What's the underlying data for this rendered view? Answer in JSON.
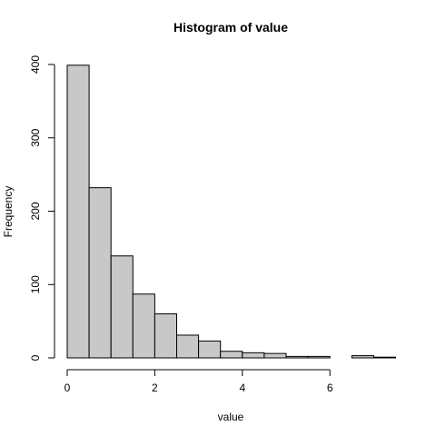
{
  "chart_data": {
    "type": "bar",
    "title": "Histogram of value",
    "xlabel": "value",
    "ylabel": "Frequency",
    "bin_width": 0.5,
    "bin_edges": [
      0,
      0.5,
      1,
      1.5,
      2,
      2.5,
      3,
      3.5,
      4,
      4.5,
      5,
      5.5,
      6,
      6.5,
      7,
      7.5
    ],
    "values": [
      399,
      232,
      139,
      87,
      60,
      31,
      23,
      9,
      7,
      6,
      2,
      2,
      0,
      3,
      1
    ],
    "xlim": [
      0,
      7.5
    ],
    "ylim": [
      0,
      400
    ],
    "x_ticks": [
      0,
      2,
      4,
      6
    ],
    "y_ticks": [
      0,
      100,
      200,
      300,
      400
    ],
    "grid": false,
    "bar_color": "#c8c8c8",
    "edge_color": "#000000"
  }
}
